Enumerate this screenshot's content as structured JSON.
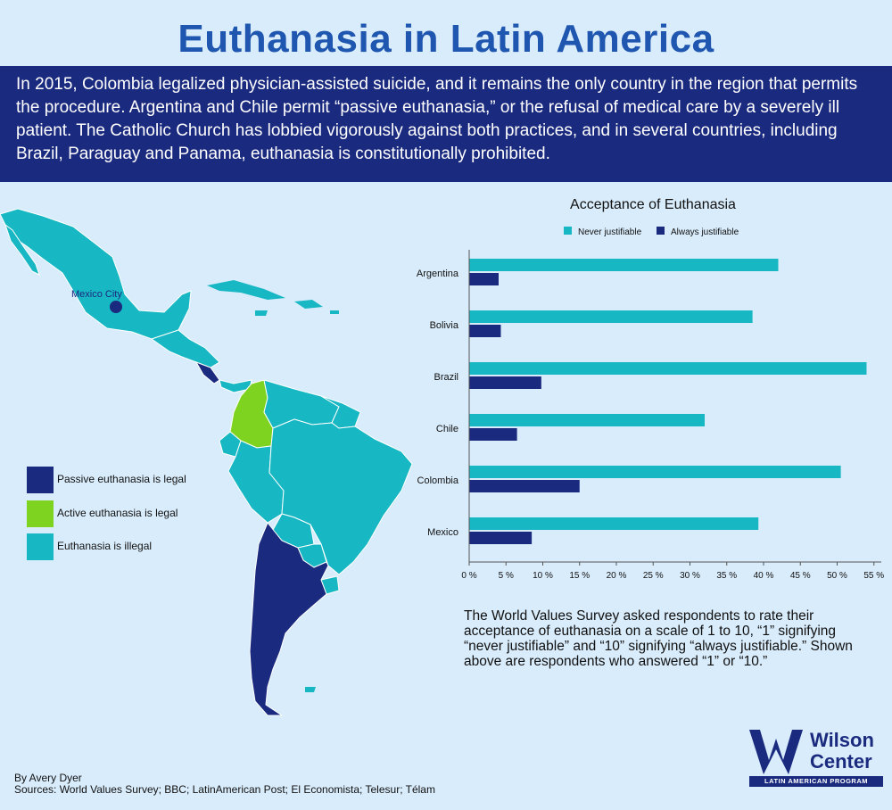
{
  "title": "Euthanasia in Latin America",
  "intro": "In 2015, Colombia legalized physician-assisted suicide, and it remains the only country in the region that permits the procedure. Argentina and Chile permit “passive euthanasia,” or the refusal of medical care by a severely ill patient. The Catholic Church has lobbied vigorously against both practices, and in several countries, including Brazil, Paraguay and Panama, euthanasia is constitutionally prohibited.",
  "map": {
    "city_label": "Mexico City",
    "legend": [
      {
        "label": "Passive euthanasia is legal",
        "color": "#1a2a7f"
      },
      {
        "label": "Active euthanasia is legal",
        "color": "#7ed321"
      },
      {
        "label": "Euthanasia is illegal",
        "color": "#17b8c4"
      }
    ]
  },
  "chart_data": {
    "type": "bar",
    "orientation": "horizontal",
    "title": "Acceptance of Euthanasia",
    "categories": [
      "Argentina",
      "Bolivia",
      "Brazil",
      "Chile",
      "Colombia",
      "Mexico"
    ],
    "series": [
      {
        "name": "Never justifiable",
        "color": "#17b8c4",
        "values": [
          42,
          38.5,
          54,
          32,
          50.5,
          39.3
        ]
      },
      {
        "name": "Always justifiable",
        "color": "#1a2a7f",
        "values": [
          4,
          4.3,
          9.8,
          6.5,
          15,
          8.5
        ]
      }
    ],
    "xticks": [
      "0 %",
      "5 %",
      "10 %",
      "15 %",
      "20 %",
      "25 %",
      "30 %",
      "35 %",
      "40 %",
      "45 %",
      "50 %",
      "55 %"
    ],
    "xlim": [
      0,
      56
    ],
    "legend_position": "top"
  },
  "note": "The World Values Survey asked respondents to rate their acceptance of euthanasia on a scale of 1 to 10, “1” signifying “never justifiable” and “10” signifying “always justifiable.” Shown above are respondents who answered “1” or “10.”",
  "credits": {
    "author": "By Avery Dyer",
    "sources": "Sources: World Values Survey; BBC; LatinAmerican Post; El Economista; Telesur; Télam"
  },
  "logo": {
    "line1": "Wilson",
    "line2": "Center",
    "program": "LATIN AMERICAN PROGRAM"
  }
}
